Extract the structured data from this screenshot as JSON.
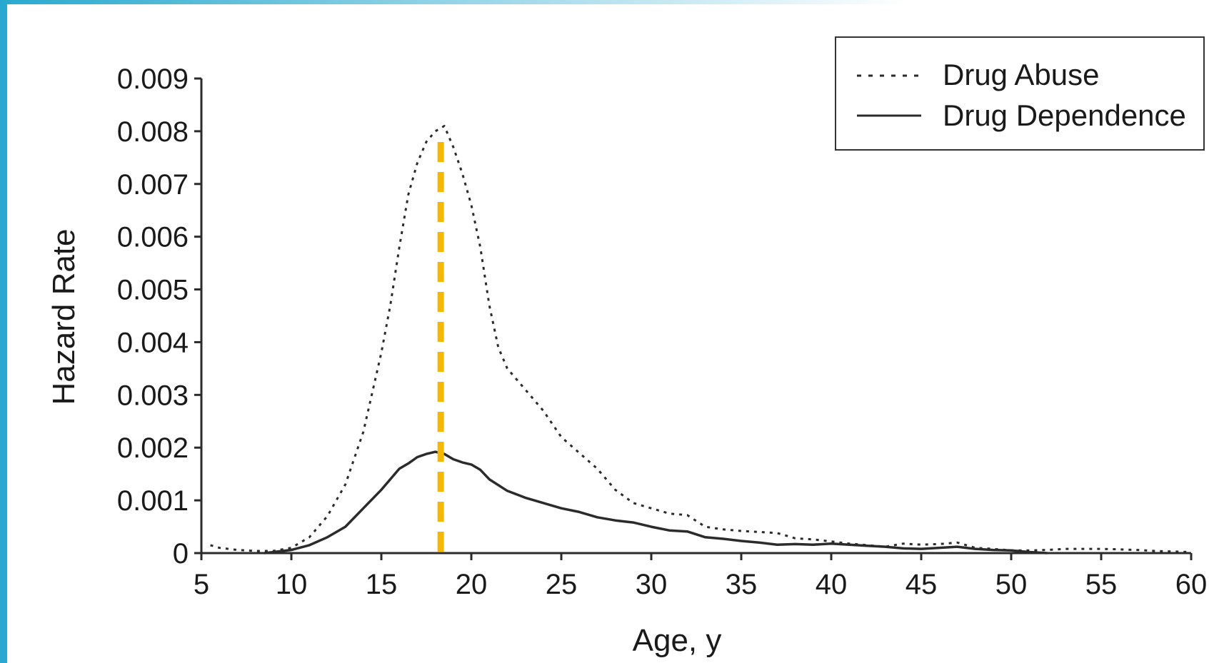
{
  "colors": {
    "accent": "#29a9cf",
    "line": "#2b2b2b",
    "marker": "#f5b800"
  },
  "chart_data": {
    "type": "line",
    "title": "",
    "xlabel": "Age, y",
    "ylabel": "Hazard Rate",
    "xlim": [
      5,
      60
    ],
    "ylim": [
      0,
      0.009
    ],
    "xticks": [
      "5",
      "10",
      "15",
      "20",
      "25",
      "30",
      "35",
      "40",
      "45",
      "50",
      "55",
      "60"
    ],
    "yticks": [
      "0",
      "0.001",
      "0.002",
      "0.003",
      "0.004",
      "0.005",
      "0.006",
      "0.007",
      "0.008",
      "0.009"
    ],
    "grid": false,
    "legend_position": "top-right",
    "reference_line": {
      "x": 18.3,
      "style": "dashed"
    },
    "series": [
      {
        "name": "Drug Abuse",
        "style": "dotted",
        "x": [
          5.5,
          6,
          7,
          8,
          9,
          10,
          11,
          12,
          13,
          14,
          15,
          15.5,
          16,
          16.5,
          17,
          17.5,
          18,
          18.5,
          19,
          19.5,
          20,
          20.5,
          21,
          21.5,
          22,
          23,
          24,
          25,
          26,
          27,
          28,
          29,
          30,
          31,
          32,
          33,
          34,
          35,
          36,
          37,
          38,
          39,
          40,
          41,
          42,
          43,
          44,
          45,
          46,
          47,
          48,
          49,
          50,
          51,
          52,
          53,
          54,
          55,
          56,
          57,
          58,
          59,
          60
        ],
        "values": [
          0.00015,
          0.0001,
          6e-05,
          4e-05,
          4e-05,
          0.0001,
          0.0003,
          0.0007,
          0.0013,
          0.0023,
          0.0038,
          0.0047,
          0.0058,
          0.0068,
          0.0074,
          0.0078,
          0.008,
          0.0081,
          0.0077,
          0.0072,
          0.0066,
          0.0058,
          0.0047,
          0.0039,
          0.0035,
          0.0031,
          0.0027,
          0.0022,
          0.0019,
          0.0016,
          0.0012,
          0.00095,
          0.00085,
          0.00075,
          0.00072,
          0.0005,
          0.00045,
          0.00042,
          0.0004,
          0.00038,
          0.00028,
          0.00026,
          0.00022,
          0.00018,
          0.00015,
          0.00012,
          0.00018,
          0.00016,
          0.00017,
          0.0002,
          0.0001,
          8e-05,
          5e-05,
          5e-05,
          6e-05,
          8e-05,
          8e-05,
          8e-05,
          7e-05,
          6e-05,
          4e-05,
          3e-05,
          2e-05
        ]
      },
      {
        "name": "Drug Dependence",
        "style": "solid",
        "x": [
          8.5,
          9,
          10,
          11,
          12,
          13,
          14,
          15,
          16,
          16.5,
          17,
          17.5,
          18,
          18.5,
          19,
          19.5,
          20,
          20.5,
          21,
          22,
          23,
          24,
          25,
          26,
          27,
          28,
          29,
          30,
          31,
          32,
          33,
          34,
          35,
          36,
          37,
          38,
          39,
          40,
          41,
          42,
          43,
          44,
          45,
          46,
          47,
          48,
          49,
          50,
          51,
          52
        ],
        "values": [
          0.0,
          2e-05,
          6e-05,
          0.00015,
          0.0003,
          0.0005,
          0.00085,
          0.0012,
          0.0016,
          0.0017,
          0.00182,
          0.00188,
          0.00192,
          0.00188,
          0.00178,
          0.00172,
          0.00168,
          0.00158,
          0.0014,
          0.00118,
          0.00105,
          0.00095,
          0.00085,
          0.00078,
          0.00068,
          0.00062,
          0.00058,
          0.0005,
          0.00043,
          0.00041,
          0.0003,
          0.00027,
          0.00023,
          0.0002,
          0.00016,
          0.00017,
          0.00016,
          0.00018,
          0.00016,
          0.00014,
          0.00012,
          9e-05,
          8e-05,
          0.0001,
          0.00012,
          8e-05,
          6e-05,
          5e-05,
          2e-05,
          0.0
        ]
      }
    ]
  }
}
